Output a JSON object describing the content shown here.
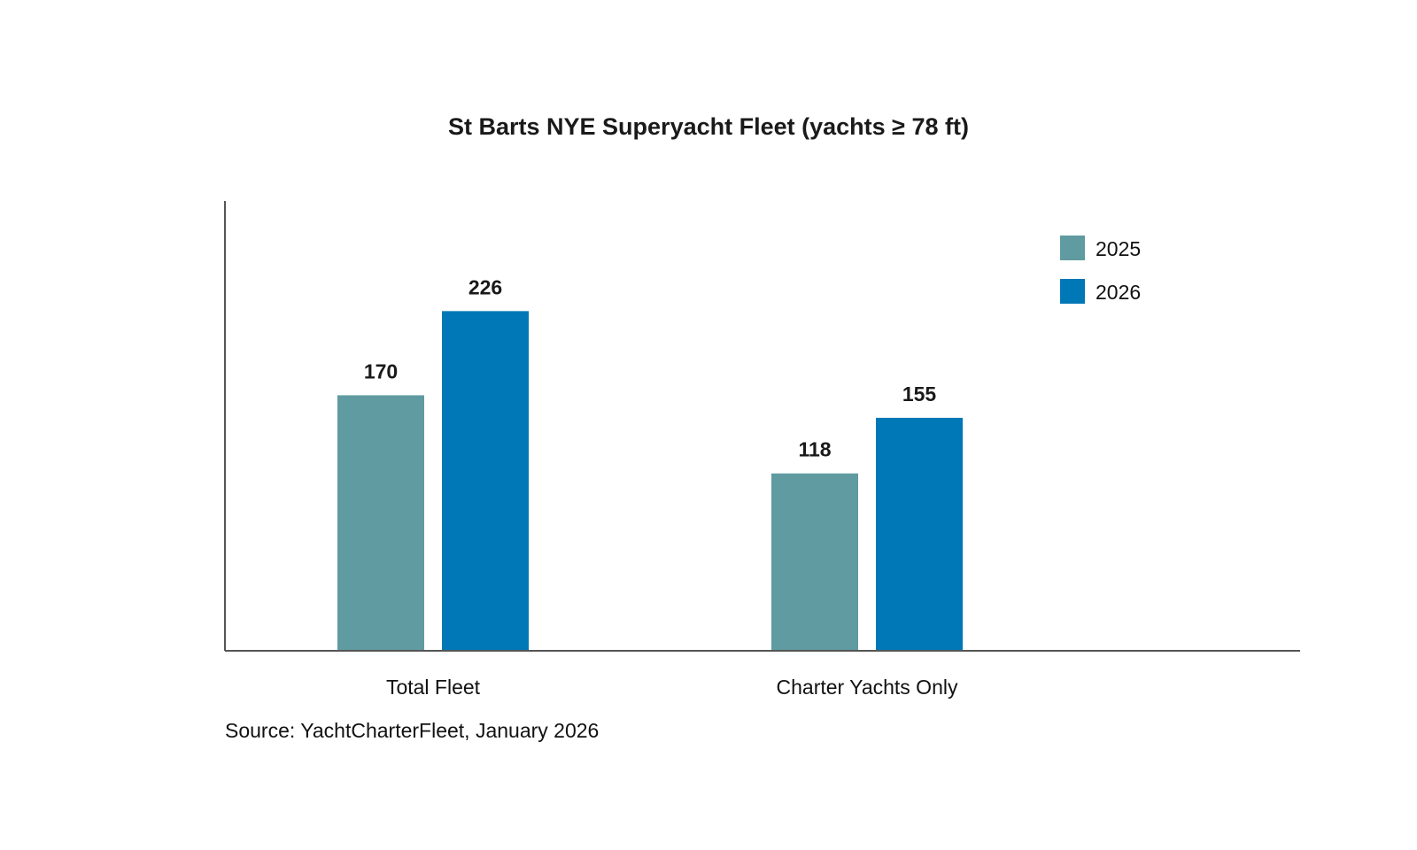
{
  "chart_data": {
    "type": "bar",
    "title": "St Barts NYE Superyacht Fleet (yachts ≥ 78 ft)",
    "categories": [
      "Total Fleet",
      "Charter Yachts Only"
    ],
    "series": [
      {
        "name": "2025",
        "values": [
          170,
          118
        ],
        "color": "#5f9ba0"
      },
      {
        "name": "2026",
        "values": [
          226,
          155
        ],
        "color": "#0077b6"
      }
    ],
    "xlabel": "",
    "ylabel": "",
    "ylim": [
      0,
      300
    ],
    "grid": false,
    "legend_position": "top-right",
    "source": "Source: YachtCharterFleet, January 2026"
  }
}
